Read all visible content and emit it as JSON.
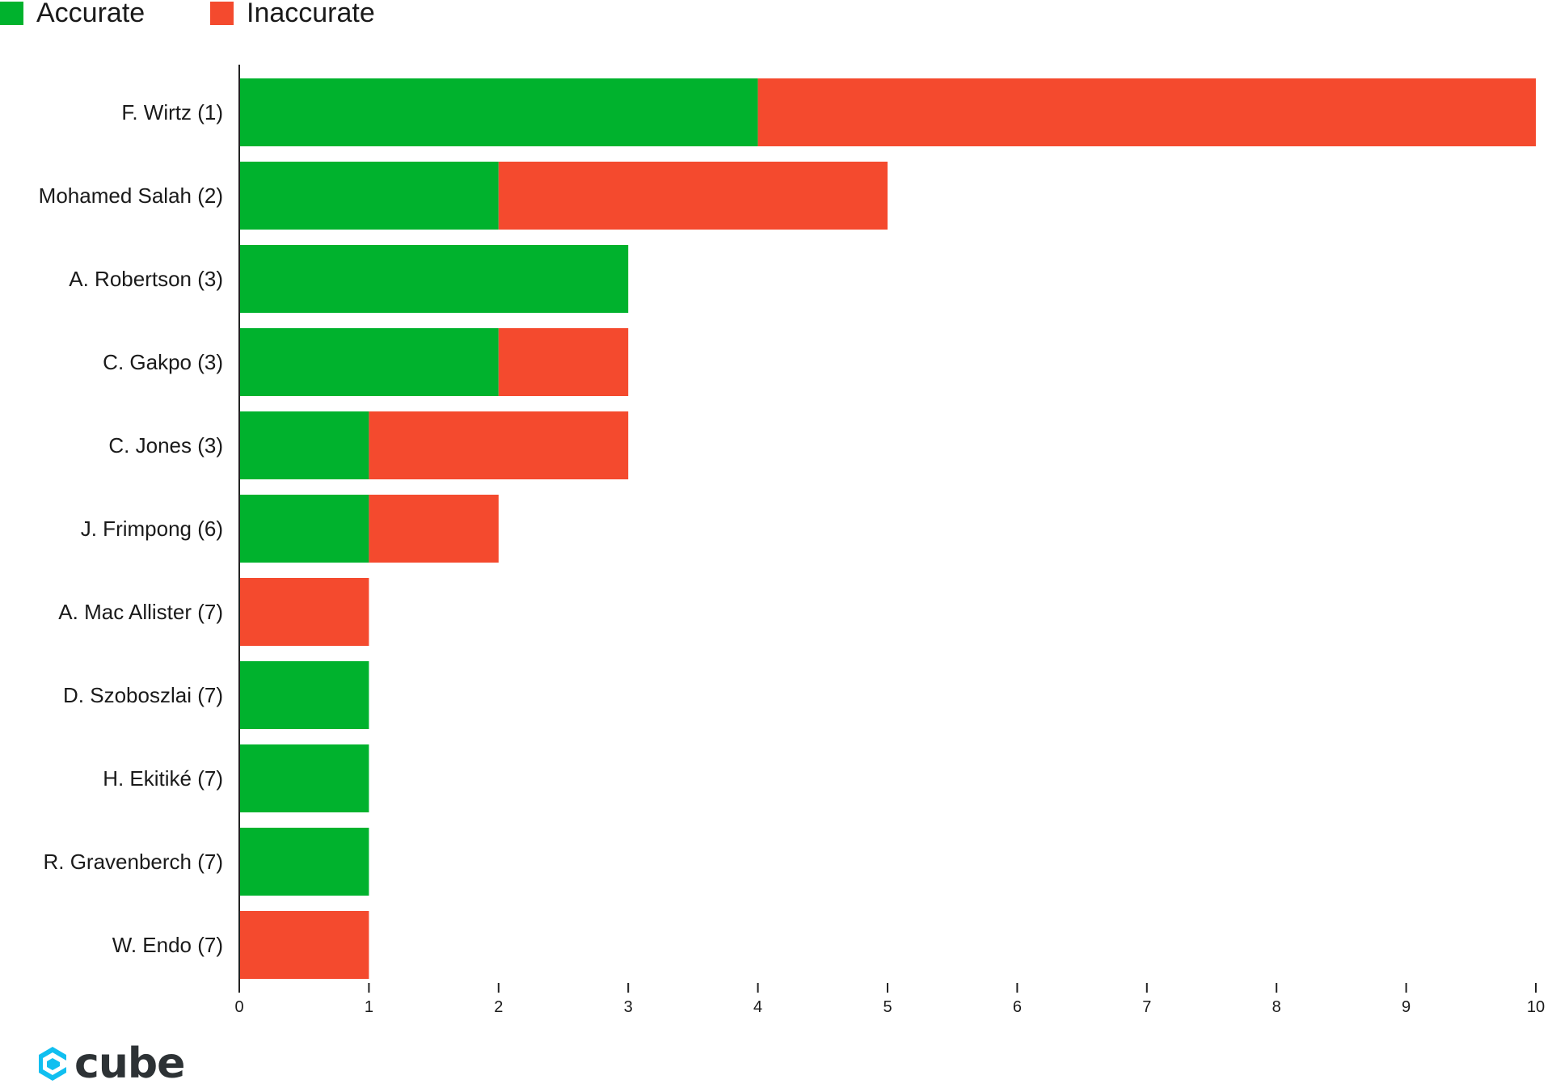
{
  "legend": [
    {
      "label": "Accurate",
      "color": "#00b22d"
    },
    {
      "label": "Inaccurate",
      "color": "#f44a2e"
    }
  ],
  "logo": {
    "text": "cube",
    "icon": "cube-logo-icon"
  },
  "chart_data": {
    "type": "bar",
    "orientation": "horizontal",
    "stacked": true,
    "title": "",
    "xlabel": "",
    "ylabel": "",
    "xlim": [
      0,
      10
    ],
    "x_ticks": [
      "0",
      "1",
      "2",
      "3",
      "4",
      "5",
      "6",
      "7",
      "8",
      "9",
      "10"
    ],
    "grid": false,
    "legend_position": "top-left",
    "categories": [
      "F. Wirtz (1)",
      "Mohamed Salah (2)",
      "A. Robertson (3)",
      "C. Gakpo (3)",
      "C. Jones (3)",
      "J. Frimpong (6)",
      "A. Mac Allister (7)",
      "D. Szoboszlai (7)",
      "H. Ekitiké (7)",
      "R. Gravenberch (7)",
      "W. Endo (7)"
    ],
    "series": [
      {
        "name": "Accurate",
        "color": "#00b22d",
        "values": [
          4,
          2,
          3,
          2,
          1,
          1,
          0,
          1,
          1,
          1,
          0
        ]
      },
      {
        "name": "Inaccurate",
        "color": "#f44a2e",
        "values": [
          6,
          3,
          0,
          1,
          2,
          1,
          1,
          0,
          0,
          0,
          1
        ]
      }
    ]
  }
}
